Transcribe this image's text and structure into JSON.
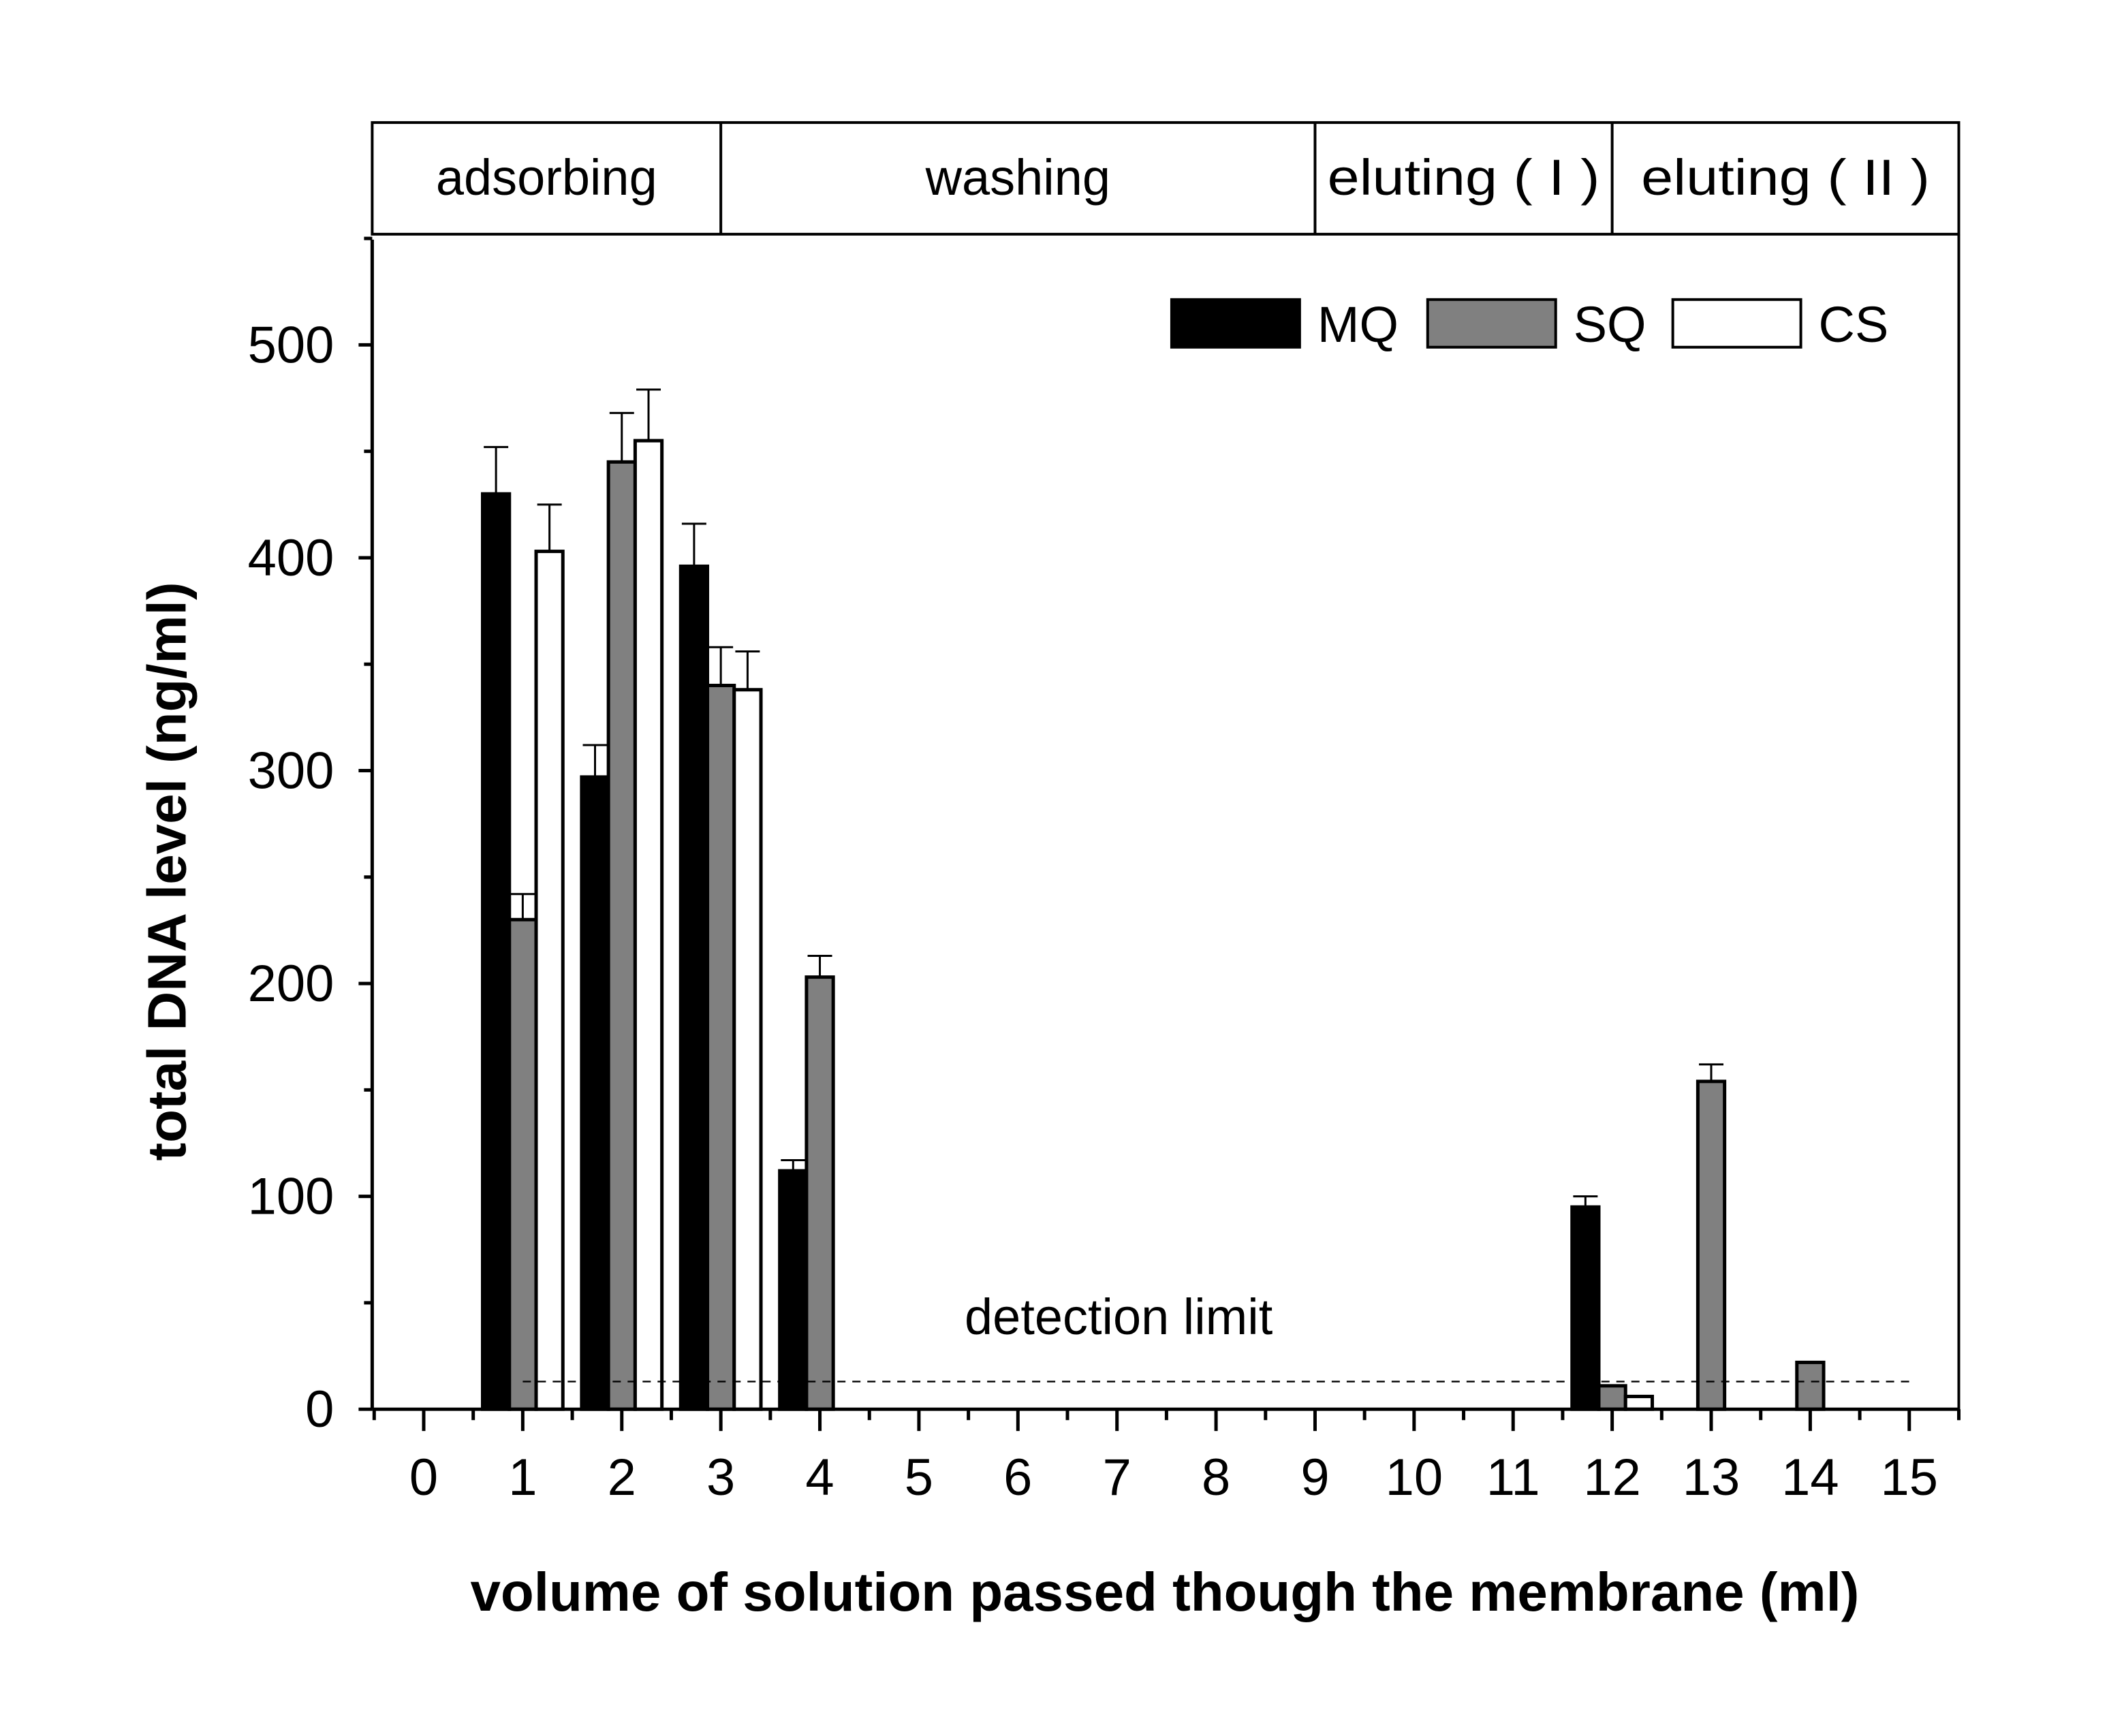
{
  "chart_data": {
    "type": "bar",
    "xlabel": "volume of solution passed though the membrane (ml)",
    "ylabel": "total DNA level (ng/ml)",
    "xlim": [
      -0.52,
      15.5
    ],
    "ylim": [
      0,
      552
    ],
    "x_ticks": [
      0,
      1,
      2,
      3,
      4,
      5,
      6,
      7,
      8,
      9,
      10,
      11,
      12,
      13,
      14,
      15
    ],
    "y_ticks": [
      0,
      100,
      200,
      300,
      400,
      500
    ],
    "grid": false,
    "legend_position": "top-right",
    "phases": [
      {
        "label": "adsorbing",
        "from": -0.52,
        "to": 3
      },
      {
        "label": "washing",
        "from": 3,
        "to": 9
      },
      {
        "label": "eluting ( I )",
        "from": 9,
        "to": 12
      },
      {
        "label": "eluting ( II )",
        "from": 12,
        "to": 15.5
      }
    ],
    "series": [
      {
        "name": "MQ",
        "color": "#000000",
        "offset": -0.27,
        "points": [
          {
            "x": 1,
            "y": 430,
            "err": 22
          },
          {
            "x": 2,
            "y": 297,
            "err": 15
          },
          {
            "x": 3,
            "y": 396,
            "err": 20
          },
          {
            "x": 4,
            "y": 112,
            "err": 5
          },
          {
            "x": 12,
            "y": 95,
            "err": 5
          }
        ]
      },
      {
        "name": "SQ",
        "color": "#808080",
        "offset": 0,
        "points": [
          {
            "x": 1,
            "y": 230,
            "err": 12
          },
          {
            "x": 2,
            "y": 445,
            "err": 23
          },
          {
            "x": 3,
            "y": 340,
            "err": 18
          },
          {
            "x": 4,
            "y": 203,
            "err": 10
          },
          {
            "x": 12,
            "y": 11,
            "err": 0
          },
          {
            "x": 13,
            "y": 154,
            "err": 8
          },
          {
            "x": 14,
            "y": 22,
            "err": 0
          }
        ]
      },
      {
        "name": "CS",
        "color": "#ffffff",
        "offset": 0.27,
        "points": [
          {
            "x": 1,
            "y": 403,
            "err": 22
          },
          {
            "x": 2,
            "y": 455,
            "err": 24
          },
          {
            "x": 3,
            "y": 338,
            "err": 18
          },
          {
            "x": 12,
            "y": 6,
            "err": 0
          }
        ]
      }
    ],
    "detection_limit": {
      "label": "detection limit",
      "y": 13,
      "x_from": 1,
      "x_to": 15
    }
  }
}
